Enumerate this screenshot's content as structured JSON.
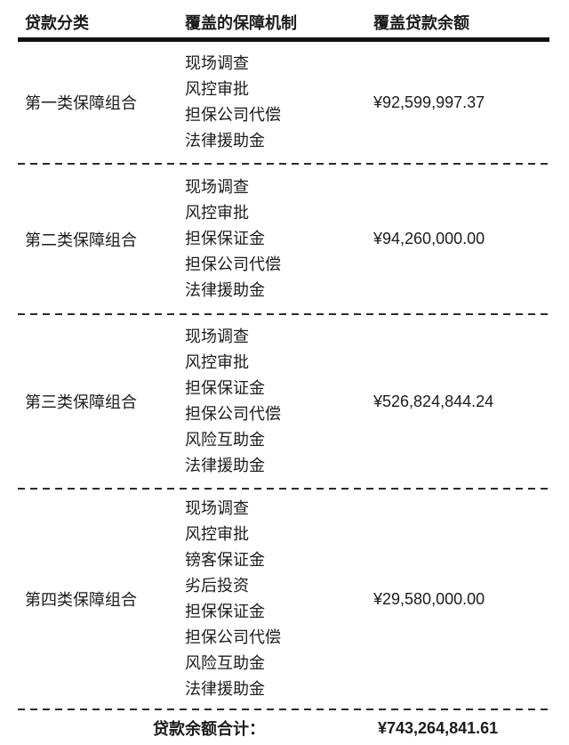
{
  "table": {
    "columns": [
      {
        "label": "贷款分类"
      },
      {
        "label": "覆盖的保障机制"
      },
      {
        "label": "覆盖贷款余额"
      }
    ],
    "rows": [
      {
        "category": "第一类保障组合",
        "mechanisms": [
          "现场调查",
          "风控审批",
          "担保公司代偿",
          "法律援助金"
        ],
        "balance": "¥92,599,997.37"
      },
      {
        "category": "第二类保障组合",
        "mechanisms": [
          "现场调查",
          "风控审批",
          "担保保证金",
          "担保公司代偿",
          "法律援助金"
        ],
        "balance": "¥94,260,000.00"
      },
      {
        "category": "第三类保障组合",
        "mechanisms": [
          "现场调查",
          "风控审批",
          "担保保证金",
          "担保公司代偿",
          "风险互助金",
          "法律援助金"
        ],
        "balance": "¥526,824,844.24"
      },
      {
        "category": "第四类保障组合",
        "mechanisms": [
          "现场调查",
          "风控审批",
          "镑客保证金",
          "劣后投资",
          "担保保证金",
          "担保公司代偿",
          "风险互助金",
          "法律援助金"
        ],
        "balance": "¥29,580,000.00"
      }
    ],
    "footer": {
      "label": "贷款余额合计：",
      "total": "¥743,264,841.61"
    }
  },
  "colors": {
    "background": "#ffffff",
    "text": "#1c1c1c",
    "rule": "#111111",
    "dash": "#2b2b2b"
  }
}
